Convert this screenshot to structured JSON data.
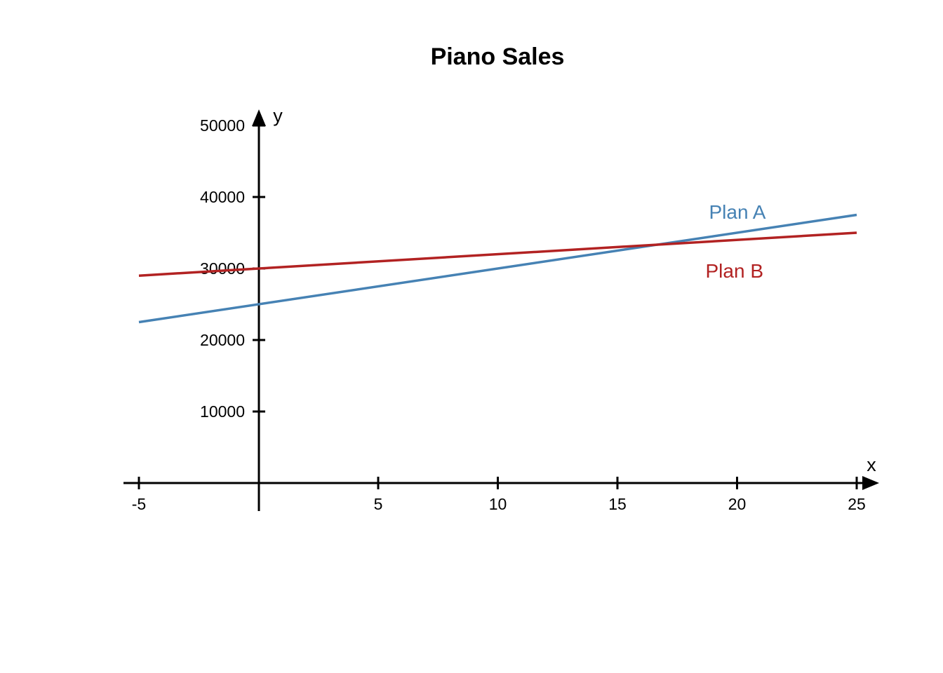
{
  "chart_data": {
    "type": "line",
    "title": "Piano Sales",
    "xlabel": "x",
    "ylabel": "y",
    "xlim": [
      -5,
      25
    ],
    "ylim": [
      0,
      50000
    ],
    "x_ticks": [
      -5,
      5,
      10,
      15,
      20,
      25
    ],
    "y_ticks": [
      10000,
      20000,
      30000,
      40000,
      50000
    ],
    "x_tick_labels": [
      "-5",
      "5",
      "10",
      "15",
      "20",
      "25"
    ],
    "y_tick_labels": [
      "10000",
      "20000",
      "30000",
      "40000",
      "50000"
    ],
    "grid": false,
    "series": [
      {
        "name": "Plan A",
        "color": "#4682b4",
        "x": [
          -5,
          25
        ],
        "y": [
          22500,
          37500
        ]
      },
      {
        "name": "Plan B",
        "color": "#b22222",
        "x": [
          -5,
          25
        ],
        "y": [
          29000,
          35000
        ]
      }
    ]
  }
}
